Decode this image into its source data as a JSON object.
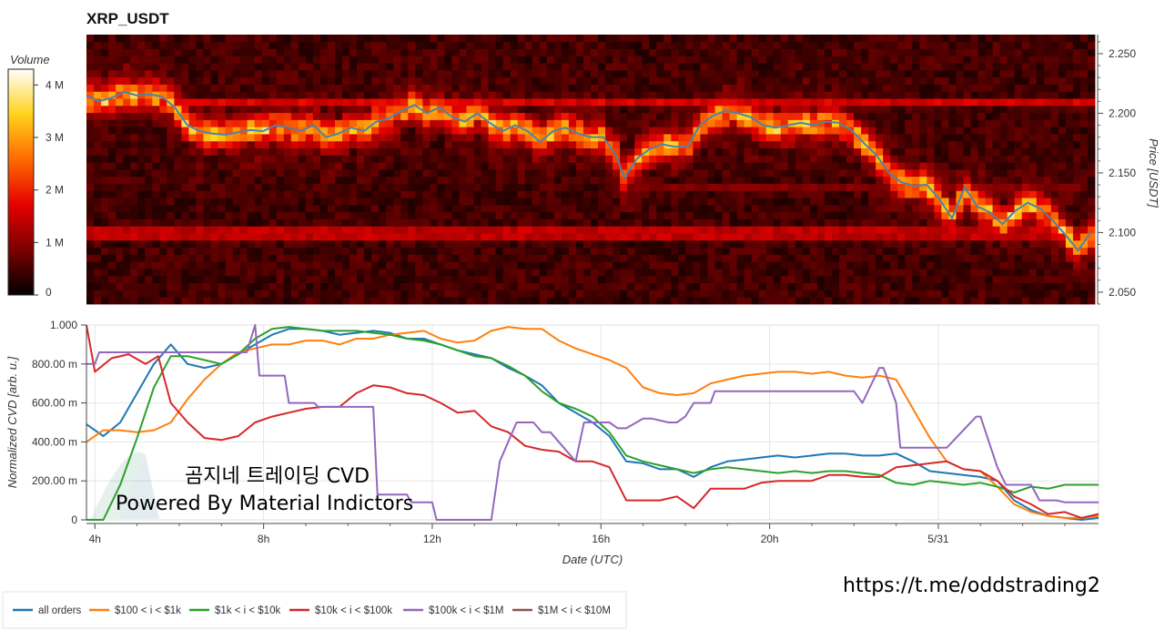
{
  "colors": {
    "price_line": "#4f82a8",
    "series": [
      "#1f77b4",
      "#ff7f0e",
      "#2ca02c",
      "#d62728",
      "#9467bd",
      "#8c564b"
    ],
    "heatmap_scale": [
      "#000000",
      "#7a0000",
      "#e60000",
      "#ff6a00",
      "#ffd21a",
      "#ffffff"
    ]
  },
  "overlay": {
    "line1": "곰지네 트레이딩 CVD",
    "line2": "Powered By Material Indictors",
    "url": "https://t.me/oddstrading2"
  },
  "chart_data": [
    {
      "type": "heatmap",
      "title": "XRP_USDT",
      "colorbar_label": "Volume",
      "colorbar_ticks": [
        "0",
        "1 M",
        "2 M",
        "3 M",
        "4 M"
      ],
      "colorbar_range": [
        0,
        4300000
      ],
      "ylabel": "Price [USDT]",
      "ylim": [
        2.04,
        2.266
      ],
      "yticks": [
        "2.050",
        "2.100",
        "2.150",
        "2.200",
        "2.250"
      ],
      "xlim": [
        3.8,
        27.8
      ],
      "liquidity_bands": [
        {
          "price": 2.209,
          "start": 4,
          "end": 27.8,
          "volume": 1600000
        },
        {
          "price": 2.099,
          "start": 3.8,
          "end": 27.8,
          "volume": 1400000
        },
        {
          "price": 2.136,
          "start": 16.8,
          "end": 27.5,
          "volume": 900000
        }
      ],
      "price_series": {
        "x": [
          3.8,
          4.1,
          4.4,
          4.7,
          5.0,
          5.3,
          5.6,
          5.9,
          6.2,
          6.5,
          6.8,
          7.1,
          7.4,
          7.7,
          8.0,
          8.3,
          8.6,
          8.9,
          9.2,
          9.5,
          9.8,
          10.1,
          10.4,
          10.7,
          11.0,
          11.3,
          11.6,
          11.9,
          12.2,
          12.5,
          12.8,
          13.1,
          13.4,
          13.7,
          14.0,
          14.3,
          14.6,
          14.9,
          15.2,
          15.5,
          15.8,
          16.1,
          16.4,
          16.6,
          16.9,
          17.2,
          17.5,
          17.8,
          18.1,
          18.4,
          18.7,
          19.0,
          19.3,
          19.6,
          19.9,
          20.2,
          20.5,
          20.8,
          21.1,
          21.4,
          21.7,
          22.0,
          22.3,
          22.6,
          22.9,
          23.2,
          23.5,
          23.8,
          24.1,
          24.4,
          24.7,
          25.0,
          25.3,
          25.6,
          25.9,
          26.2,
          26.5,
          26.8,
          27.1,
          27.4,
          27.7
        ],
        "y": [
          2.215,
          2.21,
          2.213,
          2.218,
          2.215,
          2.216,
          2.214,
          2.205,
          2.19,
          2.185,
          2.183,
          2.182,
          2.184,
          2.186,
          2.185,
          2.19,
          2.188,
          2.185,
          2.19,
          2.18,
          2.183,
          2.188,
          2.185,
          2.193,
          2.196,
          2.202,
          2.207,
          2.2,
          2.205,
          2.197,
          2.193,
          2.2,
          2.192,
          2.185,
          2.19,
          2.185,
          2.176,
          2.185,
          2.188,
          2.183,
          2.18,
          2.18,
          2.165,
          2.146,
          2.162,
          2.17,
          2.174,
          2.172,
          2.172,
          2.19,
          2.198,
          2.202,
          2.2,
          2.197,
          2.19,
          2.188,
          2.19,
          2.192,
          2.19,
          2.193,
          2.192,
          2.186,
          2.175,
          2.165,
          2.15,
          2.142,
          2.139,
          2.14,
          2.128,
          2.112,
          2.138,
          2.122,
          2.117,
          2.107,
          2.118,
          2.125,
          2.12,
          2.11,
          2.098,
          2.085,
          2.1
        ]
      }
    },
    {
      "type": "line",
      "xlabel": "Date (UTC)",
      "ylabel": "Normalized CVD [arb. u.]",
      "ylim": [
        0,
        1
      ],
      "xlim": [
        3.8,
        27.8
      ],
      "yticks": [
        "0",
        "200.00 m",
        "400.00 m",
        "600.00 m",
        "800.00 m",
        "1.000"
      ],
      "xticks": [
        {
          "pos": 4,
          "label": "4h"
        },
        {
          "pos": 8,
          "label": "8h"
        },
        {
          "pos": 12,
          "label": "12h"
        },
        {
          "pos": 16,
          "label": "16h"
        },
        {
          "pos": 20,
          "label": "20h"
        },
        {
          "pos": 24,
          "label": "5/31"
        }
      ],
      "grid": true,
      "legend_position": "bottom",
      "series": [
        {
          "name": "all orders",
          "x": [
            3.8,
            4.2,
            4.6,
            5.0,
            5.4,
            5.8,
            6.2,
            6.6,
            7.0,
            7.4,
            7.8,
            8.2,
            8.6,
            9.0,
            9.4,
            9.8,
            10.2,
            10.6,
            11.0,
            11.4,
            11.8,
            12.2,
            12.6,
            13.0,
            13.4,
            13.8,
            14.2,
            14.6,
            15.0,
            15.4,
            15.8,
            16.2,
            16.6,
            17.0,
            17.4,
            17.8,
            18.2,
            18.6,
            19.0,
            19.4,
            19.8,
            20.2,
            20.6,
            21.0,
            21.4,
            21.8,
            22.2,
            22.6,
            23.0,
            23.4,
            23.8,
            24.2,
            24.6,
            25.0,
            25.4,
            25.8,
            26.2,
            26.6,
            27.0,
            27.4,
            27.8
          ],
          "y": [
            0.49,
            0.43,
            0.5,
            0.65,
            0.8,
            0.9,
            0.8,
            0.78,
            0.8,
            0.85,
            0.9,
            0.95,
            0.98,
            0.98,
            0.97,
            0.95,
            0.96,
            0.97,
            0.96,
            0.93,
            0.93,
            0.9,
            0.87,
            0.85,
            0.83,
            0.78,
            0.74,
            0.69,
            0.6,
            0.55,
            0.5,
            0.43,
            0.3,
            0.29,
            0.26,
            0.26,
            0.22,
            0.27,
            0.3,
            0.31,
            0.32,
            0.33,
            0.32,
            0.33,
            0.34,
            0.34,
            0.33,
            0.33,
            0.34,
            0.3,
            0.25,
            0.24,
            0.23,
            0.22,
            0.2,
            0.1,
            0.05,
            0.02,
            0.01,
            0.0,
            0.01
          ]
        },
        {
          "name": "$100 < i < $1k",
          "x": [
            3.8,
            4.2,
            4.6,
            5.0,
            5.4,
            5.8,
            6.2,
            6.6,
            7.0,
            7.4,
            7.8,
            8.2,
            8.6,
            9.0,
            9.4,
            9.8,
            10.2,
            10.6,
            11.0,
            11.4,
            11.8,
            12.2,
            12.6,
            13.0,
            13.4,
            13.8,
            14.2,
            14.6,
            15.0,
            15.4,
            15.8,
            16.2,
            16.6,
            17.0,
            17.4,
            17.8,
            18.2,
            18.6,
            19.0,
            19.4,
            19.8,
            20.2,
            20.6,
            21.0,
            21.4,
            21.8,
            22.2,
            22.6,
            23.0,
            23.4,
            23.8,
            24.2,
            24.6,
            25.0,
            25.4,
            25.8,
            26.2,
            26.6,
            27.0,
            27.4,
            27.8
          ],
          "y": [
            0.4,
            0.46,
            0.46,
            0.45,
            0.46,
            0.5,
            0.62,
            0.72,
            0.8,
            0.86,
            0.88,
            0.9,
            0.9,
            0.92,
            0.92,
            0.9,
            0.93,
            0.93,
            0.95,
            0.96,
            0.97,
            0.93,
            0.91,
            0.92,
            0.97,
            0.99,
            0.98,
            0.98,
            0.92,
            0.88,
            0.85,
            0.82,
            0.78,
            0.68,
            0.65,
            0.64,
            0.65,
            0.7,
            0.72,
            0.74,
            0.75,
            0.76,
            0.76,
            0.75,
            0.76,
            0.74,
            0.73,
            0.74,
            0.72,
            0.57,
            0.42,
            0.3,
            0.26,
            0.25,
            0.17,
            0.08,
            0.04,
            0.02,
            0.01,
            0.01,
            0.02
          ]
        },
        {
          "name": "$1k < i < $10k",
          "x": [
            3.8,
            4.2,
            4.6,
            5.0,
            5.4,
            5.8,
            6.2,
            6.6,
            7.0,
            7.4,
            7.8,
            8.2,
            8.6,
            9.0,
            9.4,
            9.8,
            10.2,
            10.6,
            11.0,
            11.4,
            11.8,
            12.2,
            12.6,
            13.0,
            13.4,
            13.8,
            14.2,
            14.6,
            15.0,
            15.4,
            15.8,
            16.2,
            16.6,
            17.0,
            17.4,
            17.8,
            18.2,
            18.6,
            19.0,
            19.4,
            19.8,
            20.2,
            20.6,
            21.0,
            21.4,
            21.8,
            22.2,
            22.6,
            23.0,
            23.4,
            23.8,
            24.2,
            24.6,
            25.0,
            25.4,
            25.8,
            26.2,
            26.6,
            27.0,
            27.4,
            27.8
          ],
          "y": [
            0.0,
            0.0,
            0.18,
            0.42,
            0.68,
            0.84,
            0.84,
            0.82,
            0.8,
            0.85,
            0.93,
            0.98,
            0.99,
            0.98,
            0.97,
            0.97,
            0.97,
            0.96,
            0.95,
            0.93,
            0.92,
            0.9,
            0.87,
            0.84,
            0.83,
            0.79,
            0.74,
            0.66,
            0.6,
            0.57,
            0.53,
            0.45,
            0.33,
            0.3,
            0.28,
            0.26,
            0.24,
            0.26,
            0.27,
            0.26,
            0.25,
            0.24,
            0.25,
            0.24,
            0.25,
            0.25,
            0.24,
            0.23,
            0.19,
            0.18,
            0.2,
            0.19,
            0.18,
            0.19,
            0.17,
            0.14,
            0.17,
            0.16,
            0.18,
            0.18,
            0.18
          ]
        },
        {
          "name": "$10k < i < $100k",
          "x": [
            3.8,
            4.0,
            4.4,
            4.8,
            5.2,
            5.5,
            5.8,
            6.2,
            6.6,
            7.0,
            7.4,
            7.8,
            8.2,
            8.6,
            9.0,
            9.4,
            9.8,
            10.2,
            10.6,
            11.0,
            11.4,
            11.8,
            12.2,
            12.6,
            13.0,
            13.4,
            13.8,
            14.2,
            14.6,
            15.0,
            15.4,
            15.8,
            16.2,
            16.6,
            17.0,
            17.4,
            17.8,
            18.2,
            18.6,
            19.0,
            19.4,
            19.8,
            20.2,
            20.6,
            21.0,
            21.4,
            21.8,
            22.2,
            22.6,
            23.0,
            23.4,
            23.8,
            24.2,
            24.6,
            25.0,
            25.4,
            25.8,
            26.2,
            26.6,
            27.0,
            27.4,
            27.8
          ],
          "y": [
            1.0,
            0.76,
            0.83,
            0.85,
            0.8,
            0.84,
            0.6,
            0.5,
            0.42,
            0.41,
            0.43,
            0.5,
            0.53,
            0.55,
            0.57,
            0.58,
            0.58,
            0.65,
            0.69,
            0.68,
            0.65,
            0.64,
            0.6,
            0.55,
            0.56,
            0.48,
            0.45,
            0.38,
            0.36,
            0.35,
            0.3,
            0.3,
            0.27,
            0.1,
            0.1,
            0.1,
            0.12,
            0.06,
            0.16,
            0.16,
            0.16,
            0.19,
            0.2,
            0.2,
            0.2,
            0.23,
            0.23,
            0.22,
            0.22,
            0.27,
            0.28,
            0.29,
            0.3,
            0.26,
            0.25,
            0.2,
            0.12,
            0.08,
            0.03,
            0.04,
            0.01,
            0.03
          ]
        },
        {
          "name": "$100k < i < $1M",
          "x": [
            3.8,
            4.0,
            4.1,
            7.6,
            7.8,
            7.9,
            8.5,
            8.6,
            9.2,
            9.3,
            10.6,
            10.7,
            11.4,
            11.5,
            12.0,
            12.1,
            13.1,
            13.4,
            13.6,
            14.0,
            14.4,
            14.6,
            14.8,
            15.4,
            15.6,
            16.2,
            16.4,
            16.6,
            17.0,
            17.2,
            17.6,
            17.8,
            18.0,
            18.2,
            18.6,
            18.7,
            22.0,
            22.2,
            22.6,
            22.7,
            23.0,
            23.1,
            24.0,
            24.2,
            24.9,
            25.0,
            25.4,
            25.6,
            26.2,
            26.4,
            26.8,
            27.0,
            27.8
          ],
          "y": [
            0.8,
            0.8,
            0.86,
            0.86,
            1.0,
            0.74,
            0.74,
            0.6,
            0.6,
            0.58,
            0.58,
            0.13,
            0.13,
            0.09,
            0.09,
            0.0,
            0.0,
            0.0,
            0.3,
            0.5,
            0.5,
            0.45,
            0.45,
            0.3,
            0.5,
            0.5,
            0.47,
            0.47,
            0.52,
            0.52,
            0.5,
            0.5,
            0.53,
            0.6,
            0.6,
            0.66,
            0.66,
            0.6,
            0.78,
            0.78,
            0.6,
            0.37,
            0.37,
            0.37,
            0.53,
            0.53,
            0.27,
            0.18,
            0.18,
            0.1,
            0.1,
            0.09,
            0.09
          ]
        },
        {
          "name": "$1M < i < $10M",
          "x": [],
          "y": []
        }
      ]
    }
  ]
}
